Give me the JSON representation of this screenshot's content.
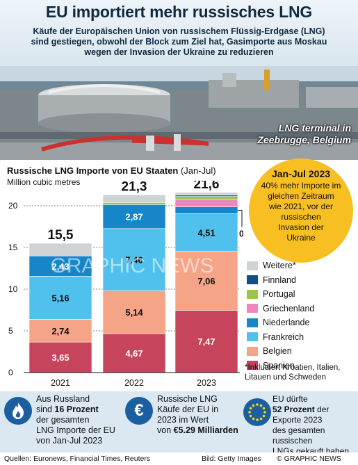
{
  "header": {
    "title": "EU importiert mehr russisches LNG",
    "subtitle_lines": [
      "Käufe der Europäischen Union von russischem Flüssig-Erdgase (LNG)",
      "sind gestiegen, obwohl der Block zum Ziel hat, Gasimporte aus Moskau",
      "wegen der Invasion der Ukraine zu reduzieren"
    ]
  },
  "photo": {
    "caption_lines": [
      "LNG terminal in",
      "Zeebrugge, Belgium"
    ]
  },
  "chart_header": {
    "title": "Russische LNG Importe von EU Staaten",
    "period": "(Jan-Jul)",
    "unit": "Million cubic metres"
  },
  "chart_data": {
    "type": "bar",
    "stacked": true,
    "title": "Russische LNG Importe von EU Staaten (Jan-Jul)",
    "ylabel": "Million cubic metres",
    "ylim": [
      0,
      20
    ],
    "y_ticks": [
      "0",
      "5",
      "10",
      "15",
      "20"
    ],
    "categories": [
      "2021",
      "2022",
      "2023"
    ],
    "totals": [
      15.5,
      21.3,
      21.6
    ],
    "total_labels": [
      "15,5",
      "21,3",
      "21,6"
    ],
    "grid": true,
    "series": [
      {
        "name": "Spanien",
        "color": "#c6455c",
        "values": [
          3.65,
          4.67,
          7.47
        ],
        "labels": [
          "3,65",
          "4,67",
          "7,47"
        ]
      },
      {
        "name": "Belgien",
        "color": "#f5a487",
        "values": [
          2.74,
          5.14,
          7.06
        ],
        "labels": [
          "2,74",
          "5,14",
          "7,06"
        ]
      },
      {
        "name": "Frankreich",
        "color": "#4fc1ec",
        "values": [
          5.16,
          7.46,
          4.51
        ],
        "labels": [
          "5,16",
          "7,46",
          "4,51"
        ]
      },
      {
        "name": "Niederlande",
        "color": "#1686c9",
        "values": [
          2.43,
          2.87,
          0.83
        ],
        "labels": [
          "2,43",
          "2,87",
          "0.83"
        ]
      },
      {
        "name": "Griechenland",
        "color": "#ef87bc",
        "values": [
          0.0,
          0.0,
          0.9
        ],
        "labels": [
          "",
          "",
          ""
        ]
      },
      {
        "name": "Portugal",
        "color": "#9bc741",
        "values": [
          0.0,
          0.25,
          0.35
        ],
        "labels": [
          "",
          "",
          ""
        ]
      },
      {
        "name": "Finnland",
        "color": "#0f4f86",
        "values": [
          0.0,
          0.0,
          0.15
        ],
        "labels": [
          "",
          "",
          ""
        ]
      },
      {
        "name": "Weitere*",
        "color": "#cfd3d6",
        "values": [
          1.52,
          0.91,
          0.33
        ],
        "labels": [
          "",
          "",
          ""
        ]
      }
    ],
    "legend_order": [
      "Weitere*",
      "Finnland",
      "Portugal",
      "Griechenland",
      "Niederlande",
      "Frankreich",
      "Belgien",
      "Spanien"
    ],
    "legend_placement": "right",
    "legend_note_lines": [
      "*Inkludiert Kroatien, Italien,",
      "Litauen und Schweden"
    ]
  },
  "callout": {
    "title": "Jan-Jul 2023",
    "text_lines": [
      "40% mehr Importe im",
      "gleichen Zeitraum",
      "wie 2021, vor der",
      "russischen",
      "Invasion der",
      "Ukraine"
    ]
  },
  "info": [
    {
      "icon": "flame-icon",
      "lines": [
        [
          "Aus Russland"
        ],
        [
          "sind ",
          "16 Prozent"
        ],
        [
          "der gesamten"
        ],
        [
          "LNG Importe der EU"
        ],
        [
          "von Jan-Jul 2023"
        ]
      ]
    },
    {
      "icon": "euro-icon",
      "symbol": "€",
      "lines": [
        [
          "Russische LNG"
        ],
        [
          "Käufe der EU in"
        ],
        [
          "2023 im Wert"
        ],
        [
          "von ",
          "€5.29 Milliarden"
        ]
      ]
    },
    {
      "icon": "eu-stars-icon",
      "lines": [
        [
          "EU dürfte"
        ],
        [
          "52 Prozent",
          " der"
        ],
        [
          "Exporte 2023"
        ],
        [
          "des gesamten russischen"
        ],
        [
          "LNGs gekauft haben"
        ]
      ]
    }
  ],
  "footer": {
    "sources": "Quellen: Euronews, Financial Times, Reuters",
    "image_credit": "Bild: Getty Images",
    "copyright": "© GRAPHIC NEWS"
  },
  "watermark": "GRAPHIC NEWS"
}
